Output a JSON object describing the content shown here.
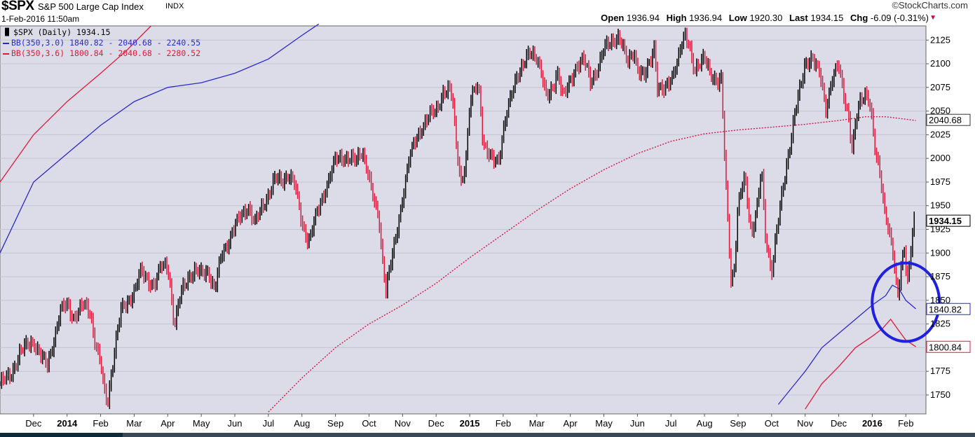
{
  "header": {
    "symbol": "$SPX",
    "name": "S&P 500 Large Cap Index",
    "exchange": "INDX",
    "datetime": "1-Feb-2016 11:50am",
    "credit": "©StockCharts.com",
    "ohlc": {
      "open_label": "Open",
      "open": "1936.94",
      "high_label": "High",
      "high": "1936.94",
      "low_label": "Low",
      "low": "1920.30",
      "last_label": "Last",
      "last": "1934.15",
      "chg_label": "Chg",
      "chg": "-6.09 (-0.31%)"
    }
  },
  "legend": {
    "price": "$SPX (Daily) 1934.15",
    "bb30": "BB(350,3.0) 1840.82 - 2040.68 - 2240.55",
    "bb36": "BB(350,3.6) 1800.84 - 2040.68 - 2280.52"
  },
  "colors": {
    "plot_bg": "#dcdce8",
    "up": "#000000",
    "down": "#e0193a",
    "bb30": "#2a2acc",
    "bb36": "#e0193a",
    "mid": "#d01a4a",
    "circle": "#2020e0"
  },
  "chart_data": {
    "type": "line",
    "title": "$SPX S&P 500 Large Cap Index",
    "ylim": [
      1730,
      2140
    ],
    "yticks": [
      1750,
      1775,
      1800,
      1825,
      1850,
      1875,
      1900,
      1925,
      1950,
      1975,
      2000,
      2025,
      2050,
      2075,
      2100,
      2125
    ],
    "grid": true,
    "legend_position": "top-left",
    "month_labels": [
      {
        "label": "Dec",
        "t": 1.0,
        "bold": false
      },
      {
        "label": "2014",
        "t": 2.0,
        "bold": true
      },
      {
        "label": "Feb",
        "t": 3.0,
        "bold": false
      },
      {
        "label": "Mar",
        "t": 4.0,
        "bold": false
      },
      {
        "label": "Apr",
        "t": 5.0,
        "bold": false
      },
      {
        "label": "May",
        "t": 6.0,
        "bold": false
      },
      {
        "label": "Jun",
        "t": 7.0,
        "bold": false
      },
      {
        "label": "Jul",
        "t": 8.0,
        "bold": false
      },
      {
        "label": "Aug",
        "t": 9.0,
        "bold": false
      },
      {
        "label": "Sep",
        "t": 10.0,
        "bold": false
      },
      {
        "label": "Oct",
        "t": 11.0,
        "bold": false
      },
      {
        "label": "Nov",
        "t": 12.0,
        "bold": false
      },
      {
        "label": "Dec",
        "t": 13.0,
        "bold": false
      },
      {
        "label": "2015",
        "t": 14.0,
        "bold": true
      },
      {
        "label": "Feb",
        "t": 15.0,
        "bold": false
      },
      {
        "label": "Mar",
        "t": 16.0,
        "bold": false
      },
      {
        "label": "Apr",
        "t": 17.0,
        "bold": false
      },
      {
        "label": "May",
        "t": 18.0,
        "bold": false
      },
      {
        "label": "Jun",
        "t": 19.0,
        "bold": false
      },
      {
        "label": "Jul",
        "t": 20.0,
        "bold": false
      },
      {
        "label": "Aug",
        "t": 21.0,
        "bold": false
      },
      {
        "label": "Sep",
        "t": 22.0,
        "bold": false
      },
      {
        "label": "Oct",
        "t": 23.0,
        "bold": false
      },
      {
        "label": "Nov",
        "t": 24.0,
        "bold": false
      },
      {
        "label": "Dec",
        "t": 25.0,
        "bold": false
      },
      {
        "label": "2016",
        "t": 26.0,
        "bold": true
      },
      {
        "label": "Feb",
        "t": 27.0,
        "bold": false
      }
    ],
    "price_series": {
      "name": "$SPX (Daily)",
      "x_unit": "months since start of Nov 2013",
      "points": [
        [
          0.0,
          1762
        ],
        [
          0.3,
          1770
        ],
        [
          0.6,
          1795
        ],
        [
          0.8,
          1802
        ],
        [
          1.0,
          1807
        ],
        [
          1.2,
          1792
        ],
        [
          1.4,
          1780
        ],
        [
          1.6,
          1808
        ],
        [
          1.8,
          1838
        ],
        [
          2.0,
          1846
        ],
        [
          2.2,
          1832
        ],
        [
          2.5,
          1845
        ],
        [
          2.7,
          1838
        ],
        [
          2.8,
          1812
        ],
        [
          3.0,
          1782
        ],
        [
          3.1,
          1755
        ],
        [
          3.2,
          1741
        ],
        [
          3.4,
          1795
        ],
        [
          3.6,
          1838
        ],
        [
          3.8,
          1848
        ],
        [
          4.0,
          1860
        ],
        [
          4.2,
          1880
        ],
        [
          4.4,
          1872
        ],
        [
          4.6,
          1866
        ],
        [
          4.8,
          1885
        ],
        [
          5.0,
          1888
        ],
        [
          5.1,
          1858
        ],
        [
          5.2,
          1822
        ],
        [
          5.4,
          1858
        ],
        [
          5.6,
          1875
        ],
        [
          5.8,
          1880
        ],
        [
          6.0,
          1878
        ],
        [
          6.2,
          1882
        ],
        [
          6.4,
          1860
        ],
        [
          6.6,
          1898
        ],
        [
          6.8,
          1912
        ],
        [
          7.0,
          1928
        ],
        [
          7.2,
          1940
        ],
        [
          7.4,
          1950
        ],
        [
          7.6,
          1930
        ],
        [
          7.8,
          1948
        ],
        [
          8.0,
          1962
        ],
        [
          8.2,
          1978
        ],
        [
          8.4,
          1976
        ],
        [
          8.6,
          1984
        ],
        [
          8.8,
          1970
        ],
        [
          9.0,
          1932
        ],
        [
          9.2,
          1912
        ],
        [
          9.4,
          1936
        ],
        [
          9.6,
          1958
        ],
        [
          9.8,
          1978
        ],
        [
          10.0,
          1998
        ],
        [
          10.2,
          2002
        ],
        [
          10.4,
          2000
        ],
        [
          10.6,
          1996
        ],
        [
          10.8,
          2010
        ],
        [
          11.0,
          1980
        ],
        [
          11.1,
          1960
        ],
        [
          11.3,
          1935
        ],
        [
          11.4,
          1895
        ],
        [
          11.5,
          1862
        ],
        [
          11.6,
          1880
        ],
        [
          11.8,
          1915
        ],
        [
          12.0,
          1960
        ],
        [
          12.2,
          2000
        ],
        [
          12.4,
          2020
        ],
        [
          12.6,
          2035
        ],
        [
          12.8,
          2045
        ],
        [
          13.0,
          2050
        ],
        [
          13.2,
          2070
        ],
        [
          13.4,
          2072
        ],
        [
          13.5,
          2058
        ],
        [
          13.6,
          2015
        ],
        [
          13.75,
          1975
        ],
        [
          13.9,
          2000
        ],
        [
          14.0,
          2055
        ],
        [
          14.2,
          2080
        ],
        [
          14.3,
          2070
        ],
        [
          14.4,
          2015
        ],
        [
          14.6,
          2000
        ],
        [
          14.8,
          1998
        ],
        [
          14.9,
          2005
        ],
        [
          15.0,
          2030
        ],
        [
          15.2,
          2060
        ],
        [
          15.4,
          2088
        ],
        [
          15.6,
          2100
        ],
        [
          15.8,
          2110
        ],
        [
          16.0,
          2108
        ],
        [
          16.1,
          2098
        ],
        [
          16.3,
          2062
        ],
        [
          16.5,
          2075
        ],
        [
          16.6,
          2095
        ],
        [
          16.8,
          2065
        ],
        [
          17.0,
          2080
        ],
        [
          17.2,
          2100
        ],
        [
          17.4,
          2105
        ],
        [
          17.6,
          2080
        ],
        [
          17.8,
          2095
        ],
        [
          18.0,
          2115
        ],
        [
          18.2,
          2122
        ],
        [
          18.4,
          2130
        ],
        [
          18.5,
          2125
        ],
        [
          18.7,
          2100
        ],
        [
          18.9,
          2115
        ],
        [
          19.0,
          2095
        ],
        [
          19.2,
          2085
        ],
        [
          19.35,
          2100
        ],
        [
          19.5,
          2120
        ],
        [
          19.6,
          2075
        ],
        [
          19.8,
          2070
        ],
        [
          20.0,
          2085
        ],
        [
          20.2,
          2105
        ],
        [
          20.4,
          2128
        ],
        [
          20.55,
          2120
        ],
        [
          20.7,
          2095
        ],
        [
          20.9,
          2100
        ],
        [
          21.0,
          2105
        ],
        [
          21.2,
          2090
        ],
        [
          21.4,
          2080
        ],
        [
          21.5,
          2082
        ],
        [
          21.6,
          2000
        ],
        [
          21.7,
          1930
        ],
        [
          21.8,
          1868
        ],
        [
          21.9,
          1890
        ],
        [
          22.0,
          1950
        ],
        [
          22.2,
          1980
        ],
        [
          22.4,
          1920
        ],
        [
          22.6,
          1955
        ],
        [
          22.7,
          1990
        ],
        [
          22.8,
          1922
        ],
        [
          22.9,
          1900
        ],
        [
          23.0,
          1881
        ],
        [
          23.1,
          1910
        ],
        [
          23.3,
          1958
        ],
        [
          23.5,
          2005
        ],
        [
          23.7,
          2050
        ],
        [
          23.9,
          2080
        ],
        [
          24.0,
          2100
        ],
        [
          24.2,
          2108
        ],
        [
          24.3,
          2100
        ],
        [
          24.5,
          2080
        ],
        [
          24.6,
          2050
        ],
        [
          24.8,
          2085
        ],
        [
          25.0,
          2098
        ],
        [
          25.1,
          2075
        ],
        [
          25.3,
          2045
        ],
        [
          25.4,
          2010
        ],
        [
          25.5,
          2035
        ],
        [
          25.6,
          2055
        ],
        [
          25.8,
          2070
        ],
        [
          25.9,
          2065
        ],
        [
          26.0,
          2040
        ],
        [
          26.1,
          2000
        ],
        [
          26.2,
          1990
        ],
        [
          26.35,
          1950
        ],
        [
          26.5,
          1925
        ],
        [
          26.6,
          1905
        ],
        [
          26.7,
          1870
        ],
        [
          26.75,
          1850
        ],
        [
          26.85,
          1880
        ],
        [
          26.95,
          1910
        ],
        [
          27.0,
          1890
        ],
        [
          27.05,
          1870
        ],
        [
          27.15,
          1905
        ],
        [
          27.25,
          1934
        ]
      ]
    },
    "bb30_lower": {
      "name": "BB(350,3.0) lower",
      "points": [
        [
          23.2,
          1740
        ],
        [
          24.0,
          1775
        ],
        [
          24.5,
          1800
        ],
        [
          25.0,
          1815
        ],
        [
          25.5,
          1830
        ],
        [
          26.0,
          1845
        ],
        [
          26.4,
          1855
        ],
        [
          26.6,
          1866
        ],
        [
          26.8,
          1862
        ],
        [
          27.0,
          1850
        ],
        [
          27.3,
          1841
        ]
      ]
    },
    "bb30_upper": {
      "name": "BB(350,3.0) upper",
      "points": [
        [
          0.0,
          1900
        ],
        [
          1.0,
          1975
        ],
        [
          2.0,
          2005
        ],
        [
          3.0,
          2035
        ],
        [
          4.0,
          2060
        ],
        [
          5.0,
          2075
        ],
        [
          6.0,
          2080
        ],
        [
          7.0,
          2090
        ],
        [
          8.0,
          2105
        ],
        [
          9.0,
          2130
        ],
        [
          9.5,
          2142
        ]
      ]
    },
    "bb36_lower": {
      "name": "BB(350,3.6) lower",
      "points": [
        [
          24.0,
          1735
        ],
        [
          24.5,
          1762
        ],
        [
          25.0,
          1780
        ],
        [
          25.5,
          1800
        ],
        [
          26.0,
          1812
        ],
        [
          26.3,
          1820
        ],
        [
          26.55,
          1830
        ],
        [
          26.75,
          1820
        ],
        [
          27.0,
          1808
        ],
        [
          27.3,
          1801
        ]
      ]
    },
    "bb36_upper": {
      "name": "BB(350,3.6) upper",
      "points": [
        [
          0.0,
          1975
        ],
        [
          1.0,
          2025
        ],
        [
          2.0,
          2060
        ],
        [
          3.0,
          2090
        ],
        [
          3.8,
          2115
        ],
        [
          4.5,
          2140
        ]
      ]
    },
    "middle_band": {
      "name": "BB middle (350)",
      "points": [
        [
          8.0,
          1732
        ],
        [
          9.0,
          1768
        ],
        [
          10.0,
          1800
        ],
        [
          11.0,
          1825
        ],
        [
          12.0,
          1845
        ],
        [
          13.0,
          1868
        ],
        [
          14.0,
          1895
        ],
        [
          15.0,
          1920
        ],
        [
          16.0,
          1945
        ],
        [
          17.0,
          1968
        ],
        [
          18.0,
          1988
        ],
        [
          19.0,
          2005
        ],
        [
          20.0,
          2018
        ],
        [
          21.0,
          2026
        ],
        [
          22.0,
          2030
        ],
        [
          23.0,
          2033
        ],
        [
          24.0,
          2036
        ],
        [
          25.0,
          2040
        ],
        [
          25.8,
          2044
        ],
        [
          26.4,
          2044
        ],
        [
          27.3,
          2040
        ]
      ]
    },
    "right_labels": [
      {
        "value": 2040.68,
        "text": "2040.68",
        "style": "bb"
      },
      {
        "value": 1934.15,
        "text": "1934.15",
        "style": "price"
      },
      {
        "value": 1840.82,
        "text": "1840.82",
        "style": "bb30"
      },
      {
        "value": 1800.84,
        "text": "1800.84",
        "style": "bb36"
      }
    ],
    "annotation": {
      "shape": "circle",
      "t": 27.0,
      "value": 1848
    }
  }
}
